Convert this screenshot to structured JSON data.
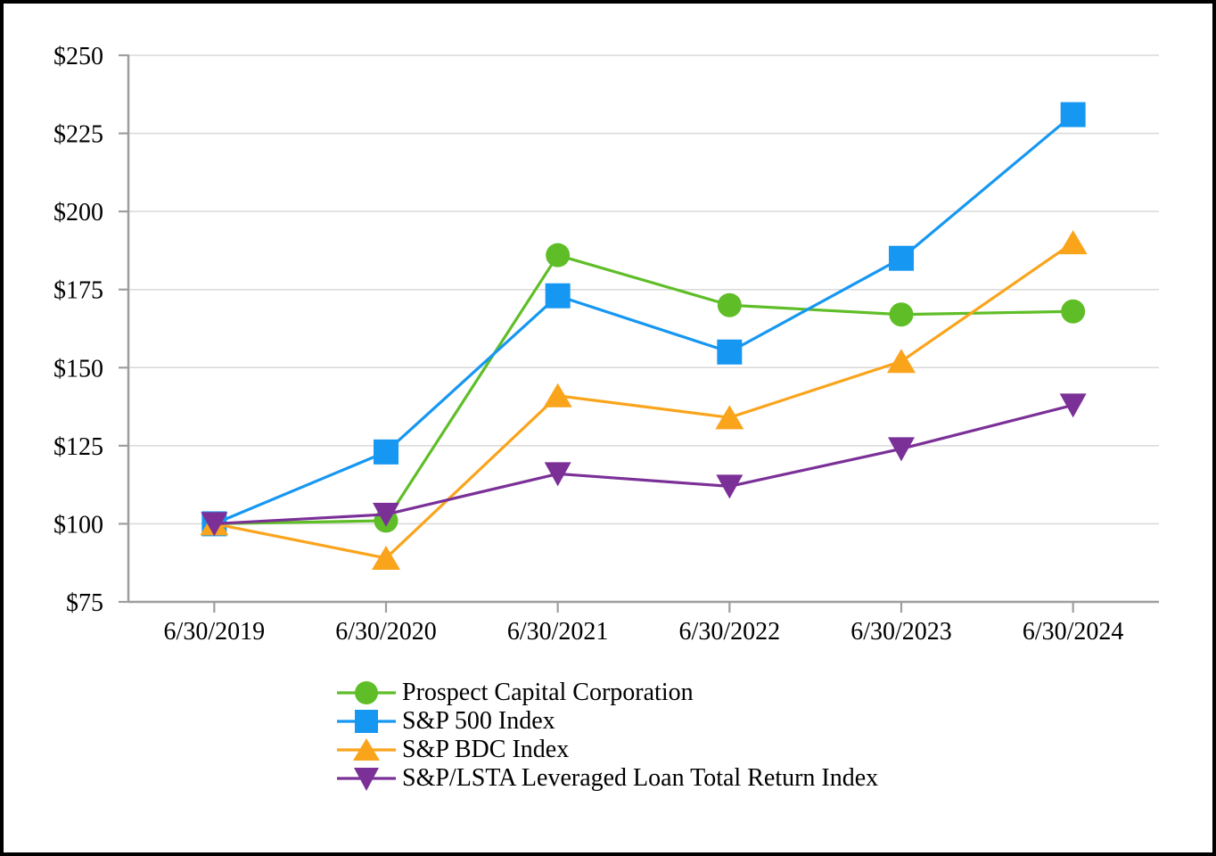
{
  "window": {
    "background_color": "#FFFFFF",
    "border_color": "#000000"
  },
  "chart_data": {
    "type": "line",
    "title": "",
    "xlabel": "",
    "ylabel": "",
    "categories": [
      "6/30/2019",
      "6/30/2020",
      "6/30/2021",
      "6/30/2022",
      "6/30/2023",
      "6/30/2024"
    ],
    "series": [
      {
        "name": "Prospect Capital Corporation",
        "color": "#5FBE27",
        "marker": "circle",
        "values": [
          100,
          101,
          186,
          170,
          167,
          168
        ]
      },
      {
        "name": "S&P 500 Index",
        "color": "#1697F2",
        "marker": "square",
        "values": [
          100,
          123,
          173,
          155,
          185,
          231
        ]
      },
      {
        "name": "S&P BDC Index",
        "color": "#FAA41C",
        "marker": "triangle-up",
        "values": [
          100,
          89,
          141,
          134,
          152,
          190
        ]
      },
      {
        "name": "S&P/LSTA Leveraged Loan Total Return Index",
        "color": "#7B3098",
        "marker": "triangle-down",
        "values": [
          100,
          103,
          116,
          112,
          124,
          138
        ]
      }
    ],
    "ylim": [
      75,
      250
    ],
    "ytick_step": 25,
    "ytick_labels": [
      "$75",
      "$100",
      "$125",
      "$150",
      "$175",
      "$200",
      "$225",
      "$250"
    ],
    "grid": "horizontal",
    "gridline_color": "#D9D9D9",
    "axis_color": "#9E9E9E",
    "text_color": "#000000",
    "legend_position": "bottom-left"
  }
}
